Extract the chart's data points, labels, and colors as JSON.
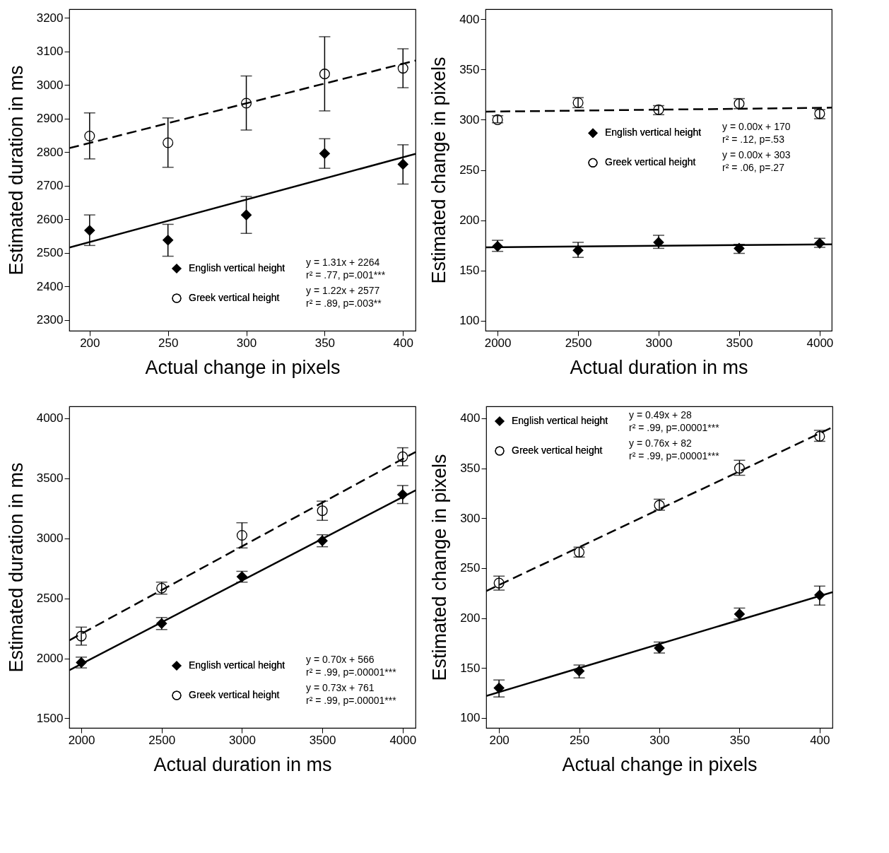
{
  "chart_data": [
    {
      "type": "scatter",
      "xlabel": "Actual change in pixels",
      "ylabel": "Estimated duration in ms",
      "xlim": [
        187,
        408
      ],
      "ylim": [
        2268,
        3226
      ],
      "xticks": [
        200,
        250,
        300,
        350,
        400
      ],
      "yticks": [
        2300,
        2400,
        2500,
        2600,
        2700,
        2800,
        2900,
        3000,
        3100,
        3200
      ],
      "legend": "bottom right",
      "x": [
        200,
        250,
        300,
        350,
        400
      ],
      "series": [
        {
          "name": "English vertical height",
          "color": "#000000",
          "marker": "diamond",
          "values": [
            2567,
            2538,
            2613,
            2796,
            2764
          ],
          "errors": [
            [
              2522,
              2613
            ],
            [
              2490,
              2585
            ],
            [
              2558,
              2668
            ],
            [
              2752,
              2840
            ],
            [
              2705,
              2822
            ]
          ]
        },
        {
          "name": "Greek vertical height",
          "color": "#000000",
          "marker": "circle",
          "values": [
            2848,
            2828,
            2946,
            3033,
            3050
          ],
          "errors": [
            [
              2780,
              2917
            ],
            [
              2755,
              2902
            ],
            [
              2866,
              3027
            ],
            [
              2923,
              3144
            ],
            [
              2992,
              3108
            ]
          ]
        },
        {
          "type": "line",
          "color": "#000000",
          "line_style": "solid",
          "x": [
            187,
            408
          ],
          "values": [
            2516,
            2795
          ]
        },
        {
          "type": "line",
          "color": "#000000",
          "line_style": "dashed",
          "x": [
            187,
            408
          ],
          "values": [
            2812,
            3073
          ]
        }
      ],
      "annotations": [
        "y = 1.31x + 2264",
        "r² = .77, p=.001***",
        "y = 1.22x + 2577",
        "r² = .89, p=.003**"
      ]
    },
    {
      "type": "scatter",
      "xlabel": "Actual duration in ms",
      "ylabel": "Estimated change in pixels",
      "xlim": [
        1925,
        4075
      ],
      "ylim": [
        90,
        410
      ],
      "xticks": [
        2000,
        2500,
        3000,
        3500,
        4000
      ],
      "yticks": [
        100,
        150,
        200,
        250,
        300,
        350,
        400
      ],
      "legend": "right",
      "x": [
        2000,
        2500,
        3000,
        3500,
        4000
      ],
      "series": [
        {
          "name": "English vertical height",
          "color": "#000000",
          "marker": "diamond",
          "values": [
            174,
            170,
            178,
            172,
            177
          ],
          "errors": [
            [
              169,
              180
            ],
            [
              163,
              178
            ],
            [
              172,
              185
            ],
            [
              167,
              176
            ],
            [
              173,
              182
            ]
          ]
        },
        {
          "name": "Greek vertical height",
          "color": "#000000",
          "marker": "circle",
          "values": [
            300,
            317,
            310,
            316,
            306
          ],
          "errors": [
            [
              297,
              304
            ],
            [
              312,
              322
            ],
            [
              305,
              314
            ],
            [
              311,
              321
            ],
            [
              301,
              310
            ]
          ]
        },
        {
          "type": "line",
          "color": "#000000",
          "line_style": "solid",
          "x": [
            1925,
            4075
          ],
          "values": [
            173,
            176
          ]
        },
        {
          "type": "line",
          "color": "#000000",
          "line_style": "dashed",
          "x": [
            1925,
            4075
          ],
          "values": [
            308,
            312
          ]
        }
      ],
      "annotations": [
        "y = 0.00x + 170",
        "r² = .12, p=.53",
        "y = 0.00x + 303",
        "r² = .06, p=.27"
      ]
    },
    {
      "type": "scatter",
      "xlabel": "Actual duration in ms",
      "ylabel": "Estimated duration in ms",
      "xlim": [
        1925,
        4080
      ],
      "ylim": [
        1420,
        4100
      ],
      "xticks": [
        2000,
        2500,
        3000,
        3500,
        4000
      ],
      "yticks": [
        1500,
        2000,
        2500,
        3000,
        3500,
        4000
      ],
      "legend": "bottom right",
      "x": [
        2000,
        2500,
        3000,
        3500,
        4000
      ],
      "series": [
        {
          "name": "English vertical height",
          "color": "#000000",
          "marker": "diamond",
          "values": [
            1965,
            2290,
            2680,
            2980,
            3365
          ],
          "errors": [
            [
              1920,
              2010
            ],
            [
              2240,
              2340
            ],
            [
              2635,
              2725
            ],
            [
              2930,
              3030
            ],
            [
              3290,
              3440
            ]
          ]
        },
        {
          "name": "Greek vertical height",
          "color": "#000000",
          "marker": "circle",
          "values": [
            2185,
            2585,
            3025,
            3230,
            3680
          ],
          "errors": [
            [
              2110,
              2260
            ],
            [
              2535,
              2635
            ],
            [
              2920,
              3130
            ],
            [
              3150,
              3310
            ],
            [
              3605,
              3755
            ]
          ]
        },
        {
          "type": "line",
          "color": "#000000",
          "line_style": "solid",
          "x": [
            1925,
            4080
          ],
          "values": [
            1900,
            3400
          ]
        },
        {
          "type": "line",
          "color": "#000000",
          "line_style": "dashed",
          "x": [
            1925,
            4080
          ],
          "values": [
            2150,
            3720
          ]
        }
      ],
      "annotations": [
        "y = 0.70x + 566",
        "r² = .99, p=.00001***",
        "y = 0.73x + 761",
        "r² = .99, p=.00001***"
      ]
    },
    {
      "type": "scatter",
      "xlabel": "Actual change in pixels",
      "ylabel": "Estimated change in pixels",
      "xlim": [
        192,
        408
      ],
      "ylim": [
        90,
        412
      ],
      "xticks": [
        200,
        250,
        300,
        350,
        400
      ],
      "yticks": [
        100,
        150,
        200,
        250,
        300,
        350,
        400
      ],
      "legend": "top left",
      "x": [
        200,
        250,
        300,
        350,
        400
      ],
      "series": [
        {
          "name": "English vertical height",
          "color": "#000000",
          "marker": "diamond",
          "values": [
            130,
            147,
            170,
            204,
            223
          ],
          "errors": [
            [
              121,
              138
            ],
            [
              140,
              153
            ],
            [
              165,
              176
            ],
            [
              199,
              210
            ],
            [
              213,
              232
            ]
          ]
        },
        {
          "name": "Greek vertical height",
          "color": "#000000",
          "marker": "circle",
          "values": [
            235,
            266,
            313,
            350,
            382
          ],
          "errors": [
            [
              228,
              242
            ],
            [
              261,
              271
            ],
            [
              308,
              319
            ],
            [
              343,
              358
            ],
            [
              377,
              388
            ]
          ]
        },
        {
          "type": "line",
          "color": "#000000",
          "line_style": "solid",
          "x": [
            192,
            408
          ],
          "values": [
            122,
            226
          ]
        },
        {
          "type": "line",
          "color": "#000000",
          "line_style": "dashed",
          "x": [
            192,
            408
          ],
          "values": [
            227,
            391
          ]
        }
      ],
      "annotations": [
        "y = 0.49x + 28",
        "r² = .99, p=.00001***",
        "y = 0.76x + 82",
        "r² = .99, p=.00001***"
      ]
    }
  ]
}
